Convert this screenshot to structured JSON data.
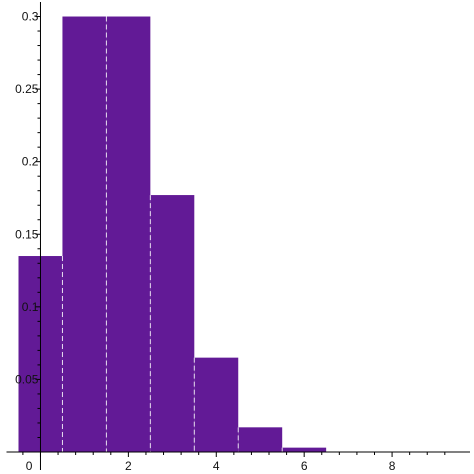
{
  "chart_data": {
    "type": "bar",
    "title": "",
    "xlabel": "",
    "ylabel": "",
    "x": [
      0,
      1,
      2,
      3,
      4,
      5,
      6,
      7,
      8,
      9
    ],
    "values": [
      0.135,
      0.3,
      0.3,
      0.177,
      0.065,
      0.017,
      0.003,
      0.0,
      0.0,
      0.0
    ],
    "xlim": [
      -0.5,
      9.5
    ],
    "ylim": [
      0,
      0.31
    ],
    "xticks": [
      0,
      2,
      4,
      6,
      8
    ],
    "yticks": [
      0.05,
      0.1,
      0.15,
      0.2,
      0.25,
      0.3
    ],
    "xtick_labels": [
      "0",
      "2",
      "4",
      "6",
      "8"
    ],
    "ytick_labels": [
      "0.05",
      "0.1",
      "0.15",
      "0.2",
      "0.25",
      "0.3"
    ],
    "grid": false,
    "legend": "none",
    "colors": {
      "bar_fill": "#621a96",
      "bar_separator": "#e8e0f0",
      "axis": "#000000",
      "tick_label": "#111111"
    }
  }
}
